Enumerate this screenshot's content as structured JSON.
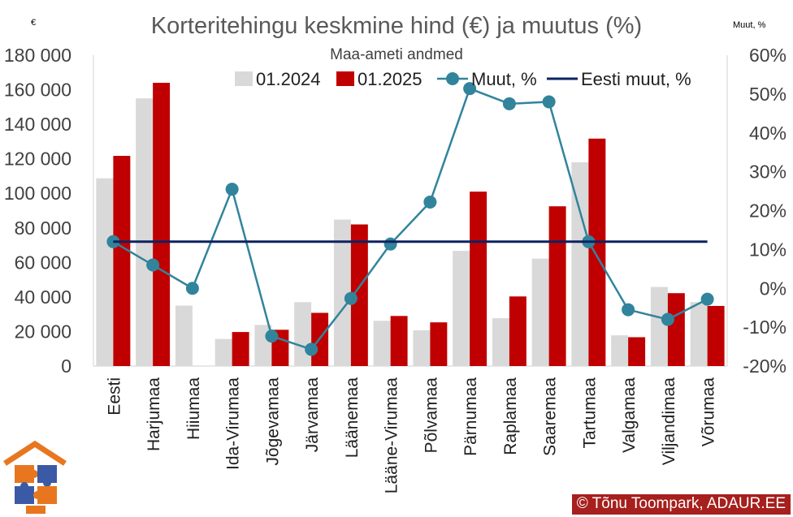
{
  "chart_data": {
    "type": "bar",
    "title": "Korteritehingu keskmine hind (€) ja muutus (%)",
    "subtitle": "Maa-ameti andmed",
    "ylabel": "€",
    "y2label": "Muut, %",
    "ylim": [
      0,
      180000
    ],
    "y2lim": [
      -20,
      60
    ],
    "yticks": [
      0,
      20000,
      40000,
      60000,
      80000,
      100000,
      120000,
      140000,
      160000,
      180000
    ],
    "ytick_labels": [
      "0",
      "20 000",
      "40 000",
      "60 000",
      "80 000",
      "100 000",
      "120 000",
      "140 000",
      "160 000",
      "180 000"
    ],
    "y2ticks": [
      -20,
      -10,
      0,
      10,
      20,
      30,
      40,
      50,
      60
    ],
    "y2tick_labels": [
      "-20%",
      "-10%",
      "0%",
      "10%",
      "20%",
      "30%",
      "40%",
      "50%",
      "60%"
    ],
    "categories": [
      "Eesti",
      "Harjumaa",
      "Hiiumaa",
      "Ida-Virumaa",
      "Jõgevamaa",
      "Järvamaa",
      "Läänemaa",
      "Lääne-Virumaa",
      "Põlvamaa",
      "Pärnumaa",
      "Raplamaa",
      "Saaremaa",
      "Tartumaa",
      "Valgamaa",
      "Viljandimaa",
      "Võrumaa"
    ],
    "series": [
      {
        "name": "01.2024",
        "kind": "bar",
        "axis": "left",
        "color": "#d9d9d9",
        "values": [
          108700,
          155000,
          35000,
          15700,
          23800,
          37000,
          84800,
          26200,
          20700,
          66700,
          27700,
          62200,
          118000,
          17800,
          45800,
          37000
        ]
      },
      {
        "name": "01.2025",
        "kind": "bar",
        "axis": "left",
        "color": "#c00000",
        "values": [
          121700,
          164000,
          0,
          19700,
          21000,
          30800,
          82000,
          29000,
          25300,
          101000,
          40300,
          92500,
          131700,
          16700,
          42200,
          34800
        ]
      },
      {
        "name": "Muut, %",
        "kind": "line-marker",
        "axis": "right",
        "color": "#31849b",
        "values": [
          12,
          6,
          0,
          25.5,
          -12.3,
          -15.7,
          -2.6,
          11.4,
          22.2,
          51.4,
          47.5,
          48,
          12,
          -5.5,
          -8,
          -2.8
        ]
      },
      {
        "name": "Eesti muut, %",
        "kind": "line",
        "axis": "right",
        "color": "#0d2260",
        "values": [
          12,
          12,
          12,
          12,
          12,
          12,
          12,
          12,
          12,
          12,
          12,
          12,
          12,
          12,
          12,
          12
        ]
      }
    ],
    "legend_position": "top",
    "grid": false
  },
  "credit": "© Tõnu Toompark, ADAUR.EE"
}
